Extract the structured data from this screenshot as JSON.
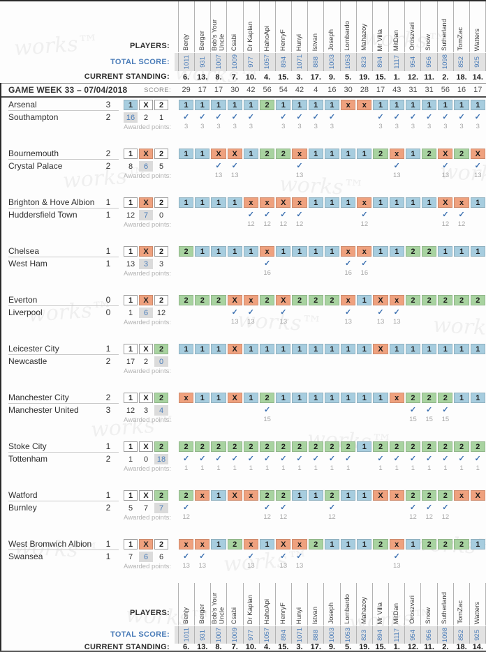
{
  "app": {
    "players_label": "PLAYERS:",
    "total_score_label": "TOTAL SCORE:",
    "current_standing_label": "CURRENT STANDING:",
    "gameweek_title": "GAME WEEK 33 – 07/04/2018",
    "score_label": "SCORE:",
    "awarded_points_label": "Awarded points:"
  },
  "outcome_labels": [
    "1",
    "X",
    "2"
  ],
  "colors": {
    "home_win": "#a7cddf",
    "draw": "#efa17e",
    "away_win": "#a8d3a0",
    "highlight_text": "#4a7cb8",
    "check": "#3a6fb0"
  },
  "watermark_text": "works™",
  "players": [
    {
      "name": "Benjy",
      "total": "1011",
      "standing": "6.",
      "week_score": "29"
    },
    {
      "name": "Berger",
      "total": "931",
      "standing": "13.",
      "week_score": "17"
    },
    {
      "name": "Bob's Your Uncle",
      "total": "1007",
      "standing": "8.",
      "week_score": "17"
    },
    {
      "name": "Csabi",
      "total": "1009",
      "standing": "7.",
      "week_score": "30"
    },
    {
      "name": "Dr Kaplan",
      "total": "977",
      "standing": "10.",
      "week_score": "42"
    },
    {
      "name": "HahoApi",
      "total": "1057",
      "standing": "4.",
      "week_score": "56"
    },
    {
      "name": "HenryF",
      "total": "894",
      "standing": "15.",
      "week_score": "54"
    },
    {
      "name": "Hunyi",
      "total": "1071",
      "standing": "3.",
      "week_score": "42"
    },
    {
      "name": "Istvan",
      "total": "888",
      "standing": "17.",
      "week_score": "4"
    },
    {
      "name": "Joseph",
      "total": "1003",
      "standing": "9.",
      "week_score": "16"
    },
    {
      "name": "Lombardo",
      "total": "1053",
      "standing": "5.",
      "week_score": "30"
    },
    {
      "name": "Mahazoy",
      "total": "823",
      "standing": "19.",
      "week_score": "28"
    },
    {
      "name": "Mr Villa",
      "total": "894",
      "standing": "15.",
      "week_score": "17"
    },
    {
      "name": "MitDan",
      "total": "1117",
      "standing": "1.",
      "week_score": "43"
    },
    {
      "name": "Oroszvari",
      "total": "954",
      "standing": "12.",
      "week_score": "31"
    },
    {
      "name": "Snow",
      "total": "956",
      "standing": "11.",
      "week_score": "31"
    },
    {
      "name": "Sutherland",
      "total": "1098",
      "standing": "2.",
      "week_score": "56"
    },
    {
      "name": "TomZac",
      "total": "852",
      "standing": "18.",
      "week_score": "16"
    },
    {
      "name": "Watters",
      "total": "925",
      "standing": "14.",
      "week_score": "17"
    }
  ],
  "matches": [
    {
      "home": "Arsenal",
      "home_goals": "3",
      "away": "Southampton",
      "away_goals": "2",
      "result": "1",
      "pick_counts": [
        "16",
        "2",
        "1"
      ],
      "points_per_correct": "3",
      "picks": [
        "1",
        "1",
        "1",
        "1",
        "1",
        "2",
        "1",
        "1",
        "1",
        "1",
        "x",
        "x",
        "1",
        "1",
        "1",
        "1",
        "1",
        "1",
        "1"
      ]
    },
    {
      "home": "Bournemouth",
      "home_goals": "2",
      "away": "Crystal Palace",
      "away_goals": "2",
      "result": "X",
      "pick_counts": [
        "8",
        "6",
        "5"
      ],
      "points_per_correct": "13",
      "picks": [
        "1",
        "1",
        "X",
        "X",
        "1",
        "2",
        "2",
        "x",
        "1",
        "1",
        "1",
        "1",
        "2",
        "x",
        "1",
        "2",
        "X",
        "2",
        "X"
      ]
    },
    {
      "home": "Brighton & Hove Albion",
      "home_goals": "1",
      "away": "Huddersfield Town",
      "away_goals": "1",
      "result": "X",
      "pick_counts": [
        "12",
        "7",
        "0"
      ],
      "points_per_correct": "12",
      "picks": [
        "1",
        "1",
        "1",
        "1",
        "x",
        "x",
        "X",
        "x",
        "1",
        "1",
        "1",
        "x",
        "1",
        "1",
        "1",
        "1",
        "X",
        "x",
        "1"
      ]
    },
    {
      "home": "Chelsea",
      "home_goals": "1",
      "away": "West Ham",
      "away_goals": "1",
      "result": "X",
      "pick_counts": [
        "13",
        "3",
        "3"
      ],
      "points_per_correct": "16",
      "picks": [
        "2",
        "1",
        "1",
        "1",
        "1",
        "x",
        "1",
        "1",
        "1",
        "1",
        "x",
        "x",
        "1",
        "1",
        "2",
        "2",
        "1",
        "1",
        "1"
      ]
    },
    {
      "home": "Everton",
      "home_goals": "0",
      "away": "Liverpool",
      "away_goals": "0",
      "result": "X",
      "pick_counts": [
        "1",
        "6",
        "12"
      ],
      "points_per_correct": "13",
      "picks": [
        "2",
        "2",
        "2",
        "X",
        "x",
        "2",
        "X",
        "2",
        "2",
        "2",
        "x",
        "1",
        "X",
        "x",
        "2",
        "2",
        "2",
        "2",
        "2"
      ]
    },
    {
      "home": "Leicester City",
      "home_goals": "1",
      "away": "Newcastle",
      "away_goals": "2",
      "result": "2",
      "pick_counts": [
        "17",
        "2",
        "0"
      ],
      "points_per_correct": null,
      "picks": [
        "1",
        "1",
        "1",
        "X",
        "1",
        "1",
        "1",
        "1",
        "1",
        "1",
        "1",
        "1",
        "X",
        "1",
        "1",
        "1",
        "1",
        "1",
        "1"
      ]
    },
    {
      "home": "Manchester City",
      "home_goals": "2",
      "away": "Manchester United",
      "away_goals": "3",
      "result": "2",
      "pick_counts": [
        "12",
        "3",
        "4"
      ],
      "points_per_correct": "15",
      "picks": [
        "x",
        "1",
        "1",
        "X",
        "1",
        "2",
        "1",
        "1",
        "1",
        "1",
        "1",
        "1",
        "1",
        "x",
        "2",
        "2",
        "2",
        "1",
        "1"
      ]
    },
    {
      "home": "Stoke City",
      "home_goals": "1",
      "away": "Tottenham",
      "away_goals": "2",
      "result": "2",
      "pick_counts": [
        "1",
        "0",
        "18"
      ],
      "points_per_correct": "1",
      "picks": [
        "2",
        "2",
        "2",
        "2",
        "2",
        "2",
        "2",
        "2",
        "2",
        "2",
        "2",
        "1",
        "2",
        "2",
        "2",
        "2",
        "2",
        "2",
        "2"
      ]
    },
    {
      "home": "Watford",
      "home_goals": "1",
      "away": "Burnley",
      "away_goals": "2",
      "result": "2",
      "pick_counts": [
        "5",
        "7",
        "7"
      ],
      "points_per_correct": "12",
      "picks": [
        "2",
        "x",
        "1",
        "X",
        "x",
        "2",
        "2",
        "1",
        "1",
        "2",
        "1",
        "1",
        "X",
        "x",
        "2",
        "2",
        "2",
        "x",
        "X"
      ]
    },
    {
      "home": "West Bromwich Albion",
      "home_goals": "1",
      "away": "Swansea",
      "away_goals": "1",
      "result": "X",
      "pick_counts": [
        "7",
        "6",
        "6"
      ],
      "points_per_correct": "13",
      "picks": [
        "x",
        "x",
        "1",
        "2",
        "x",
        "1",
        "X",
        "x",
        "2",
        "1",
        "1",
        "1",
        "2",
        "x",
        "1",
        "2",
        "2",
        "2",
        "1"
      ]
    }
  ]
}
